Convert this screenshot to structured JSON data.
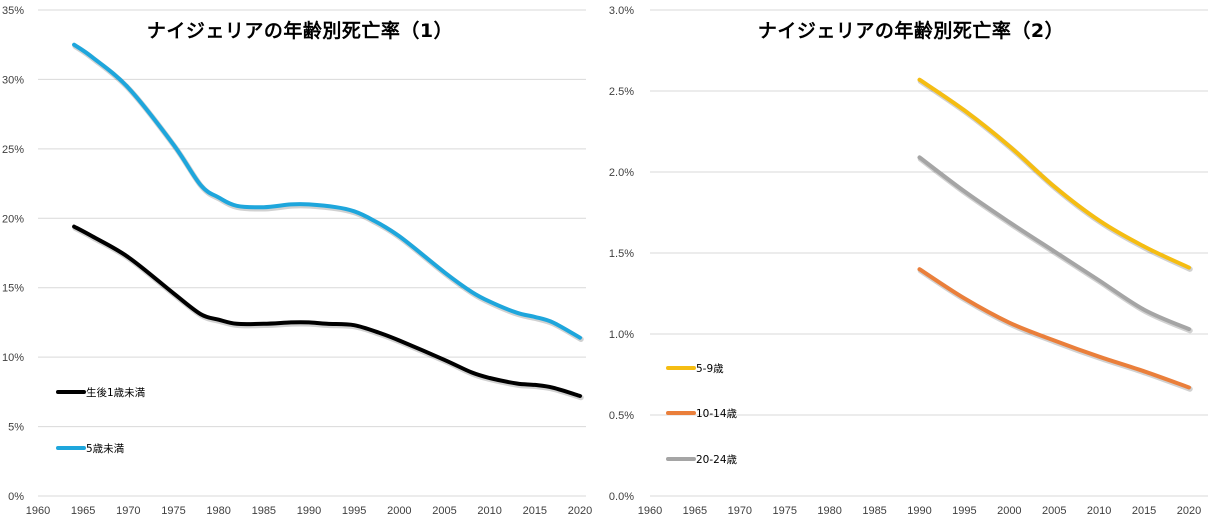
{
  "chart_data": [
    {
      "type": "line",
      "title": "ナイジェリアの年齢別死亡率（1）",
      "xlabel": "",
      "ylabel": "",
      "xlim": [
        1960,
        2020
      ],
      "ylim": [
        0,
        35
      ],
      "x_ticks": [
        "1960",
        "1965",
        "1970",
        "1975",
        "1980",
        "1985",
        "1990",
        "1995",
        "2000",
        "2005",
        "2010",
        "2015",
        "2020"
      ],
      "y_ticks": [
        "0%",
        "5%",
        "10%",
        "15%",
        "20%",
        "25%",
        "30%",
        "35%"
      ],
      "y_unit": "%",
      "grid": true,
      "legend_position": "bottom-left",
      "series": [
        {
          "name": "生後1歳未満",
          "color": "#000000",
          "x": [
            1964,
            1966,
            1970,
            1975,
            1978,
            1980,
            1982,
            1985,
            1988,
            1990,
            1992,
            1995,
            1998,
            2000,
            2005,
            2008,
            2010,
            2013,
            2015,
            2017,
            2020
          ],
          "values": [
            19.4,
            18.7,
            17.2,
            14.6,
            13.1,
            12.7,
            12.4,
            12.4,
            12.5,
            12.5,
            12.4,
            12.3,
            11.7,
            11.2,
            9.8,
            8.9,
            8.5,
            8.1,
            8.0,
            7.8,
            7.2
          ]
        },
        {
          "name": "5歳未満",
          "color": "#1ea6dc",
          "x": [
            1964,
            1966,
            1970,
            1975,
            1978,
            1980,
            1982,
            1985,
            1988,
            1990,
            1993,
            1995,
            1997,
            2000,
            2005,
            2008,
            2010,
            2013,
            2015,
            2017,
            2020
          ],
          "values": [
            32.5,
            31.6,
            29.4,
            25.3,
            22.4,
            21.5,
            20.9,
            20.8,
            21.0,
            21.0,
            20.8,
            20.5,
            19.9,
            18.7,
            16.1,
            14.7,
            14.0,
            13.2,
            12.9,
            12.5,
            11.4
          ]
        }
      ]
    },
    {
      "type": "line",
      "title": "ナイジェリアの年齢別死亡率（2）",
      "xlabel": "",
      "ylabel": "",
      "xlim": [
        1960,
        2020
      ],
      "ylim": [
        0,
        3.0
      ],
      "x_ticks": [
        "1960",
        "1965",
        "1970",
        "1975",
        "1980",
        "1985",
        "1990",
        "1995",
        "2000",
        "2005",
        "2010",
        "2015",
        "2020"
      ],
      "y_ticks": [
        "0.0%",
        "0.5%",
        "1.0%",
        "1.5%",
        "2.0%",
        "2.5%",
        "3.0%"
      ],
      "y_unit": "%",
      "grid": true,
      "legend_position": "bottom-left",
      "series": [
        {
          "name": "5-9歳",
          "color": "#f5bd12",
          "x": [
            1990,
            1995,
            2000,
            2005,
            2010,
            2015,
            2020
          ],
          "values": [
            2.57,
            2.38,
            2.16,
            1.91,
            1.7,
            1.54,
            1.41
          ]
        },
        {
          "name": "10-14歳",
          "color": "#ea7f3b",
          "x": [
            1990,
            1995,
            2000,
            2005,
            2010,
            2015,
            2020
          ],
          "values": [
            1.4,
            1.22,
            1.07,
            0.96,
            0.86,
            0.77,
            0.67
          ]
        },
        {
          "name": "20-24歳",
          "color": "#a5a5a5",
          "x": [
            1990,
            1995,
            2000,
            2005,
            2010,
            2015,
            2020
          ],
          "values": [
            2.09,
            1.88,
            1.69,
            1.51,
            1.33,
            1.15,
            1.03
          ]
        }
      ]
    }
  ]
}
